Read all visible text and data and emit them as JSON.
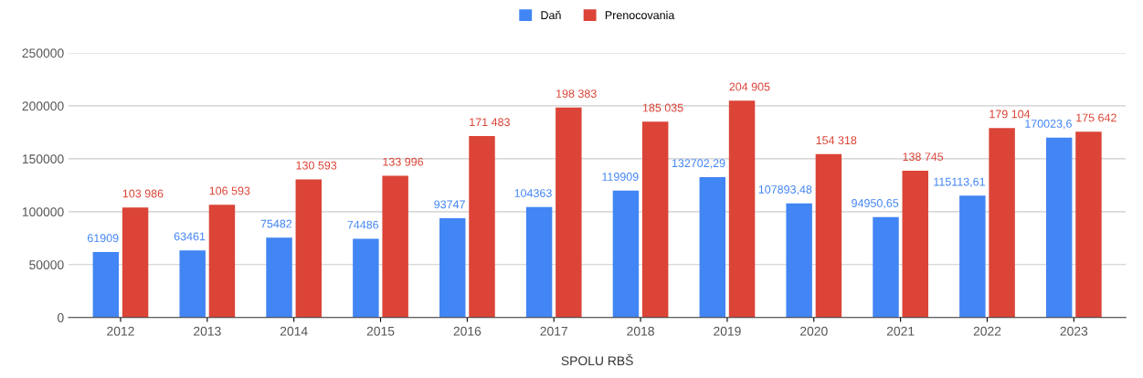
{
  "chart_data": {
    "type": "bar",
    "xlabel": "SPOLU RBŠ",
    "categories": [
      "2012",
      "2013",
      "2014",
      "2015",
      "2016",
      "2017",
      "2018",
      "2019",
      "2020",
      "2021",
      "2022",
      "2023"
    ],
    "series": [
      {
        "name": "Daň",
        "color": "#4285f4",
        "values": [
          61909,
          63461,
          75482,
          74486,
          93747,
          104363,
          119909,
          132702.29,
          107893.48,
          94950.65,
          115113.61,
          170023.6
        ],
        "value_labels": [
          "61909",
          "63461",
          "75482",
          "74486",
          "93747",
          "104363",
          "119909",
          "132702,29",
          "107893,48",
          "94950,65",
          "115113,61",
          "170023,6"
        ]
      },
      {
        "name": "Prenocovania",
        "color": "#db4437",
        "values": [
          103986,
          106593,
          130593,
          133996,
          171483,
          198383,
          185035,
          204905,
          154318,
          138745,
          179104,
          175642
        ],
        "value_labels": [
          "103 986",
          "106 593",
          "130 593",
          "133 996",
          "171 483",
          "198 383",
          "185 035",
          "204 905",
          "154 318",
          "138 745",
          "179 104",
          "175 642"
        ]
      }
    ],
    "ylim": [
      0,
      250000
    ],
    "yticks": [
      0,
      50000,
      100000,
      150000,
      200000,
      250000
    ],
    "grid": "y",
    "legend": "top"
  }
}
